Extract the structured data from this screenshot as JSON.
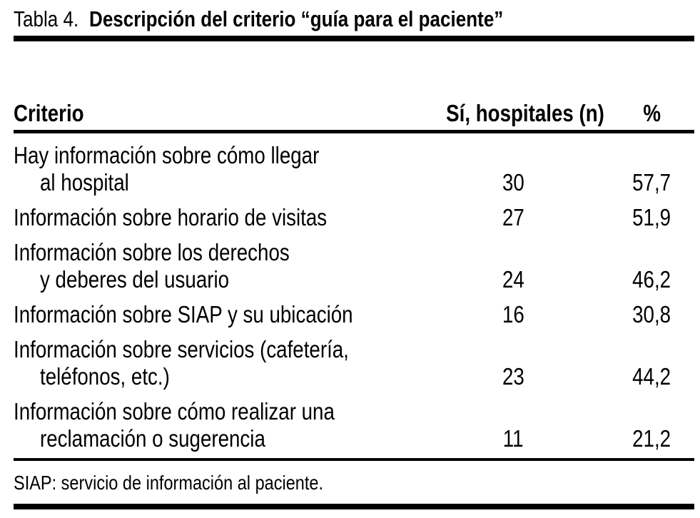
{
  "table": {
    "label": "Tabla 4.",
    "title": "Descripción del criterio “guía para el paciente”",
    "columns": {
      "criterio": "Criterio",
      "n": "Sí, hospitales (n)",
      "pct": "%"
    },
    "rows": [
      {
        "line1": "Hay información sobre cómo llegar",
        "line2": "al hospital",
        "n": "30",
        "pct": "57,7"
      },
      {
        "line1": "Información sobre horario de visitas",
        "line2": "",
        "n": "27",
        "pct": "51,9"
      },
      {
        "line1": "Información sobre los derechos",
        "line2": "y deberes del usuario",
        "n": "24",
        "pct": "46,2"
      },
      {
        "line1": "Información sobre SIAP y su ubicación",
        "line2": "",
        "n": "16",
        "pct": "30,8"
      },
      {
        "line1": "Información sobre servicios (cafetería,",
        "line2": "teléfonos, etc.)",
        "n": "23",
        "pct": "44,2"
      },
      {
        "line1": "Información sobre cómo realizar una",
        "line2": "reclamación o sugerencia",
        "n": "11",
        "pct": "21,2"
      }
    ],
    "footnote": "SIAP: servicio de información al paciente."
  },
  "colors": {
    "text": "#000000",
    "background": "#ffffff",
    "rule": "#000000"
  }
}
